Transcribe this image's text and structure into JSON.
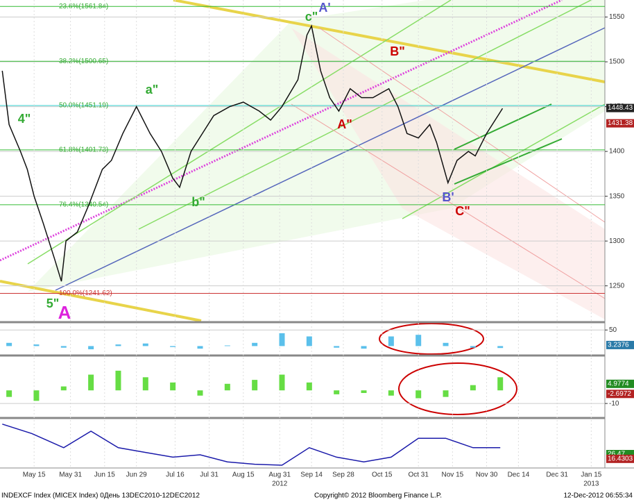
{
  "chart_data": [
    {
      "type": "line",
      "name": "INDEXCF Index",
      "x": [
        122,
        125,
        130,
        133,
        136,
        140,
        145,
        148,
        150,
        155,
        160,
        166,
        170,
        175,
        181,
        187,
        192,
        197,
        200,
        205,
        210,
        215,
        222,
        228,
        235,
        240,
        245,
        252,
        256,
        258,
        262,
        266,
        270,
        275,
        280,
        285,
        292,
        296,
        300,
        305,
        310,
        313,
        318,
        322,
        327,
        330,
        335,
        340,
        342
      ],
      "values": [
        1490,
        1430,
        1400,
        1380,
        1350,
        1320,
        1280,
        1255,
        1300,
        1310,
        1340,
        1380,
        1390,
        1420,
        1450,
        1420,
        1400,
        1370,
        1360,
        1400,
        1420,
        1440,
        1450,
        1455,
        1445,
        1435,
        1450,
        1480,
        1530,
        1540,
        1490,
        1460,
        1445,
        1470,
        1460,
        1460,
        1470,
        1450,
        1420,
        1415,
        1430,
        1410,
        1365,
        1390,
        1400,
        1395,
        1420,
        1440,
        1448
      ],
      "color": "#111111",
      "xlim": [
        121,
        387
      ],
      "ylim": [
        1211,
        1569
      ],
      "xticks": [
        {
          "value": 136,
          "label": "May 15"
        },
        {
          "value": 152,
          "label": "May 31"
        },
        {
          "value": 167,
          "label": "Jun 15"
        },
        {
          "value": 181,
          "label": "Jun 29"
        },
        {
          "value": 198,
          "label": "Jul 16"
        },
        {
          "value": 213,
          "label": "Jul 31"
        },
        {
          "value": 228,
          "label": "Aug 15"
        },
        {
          "value": 244,
          "label": "Aug 31"
        },
        {
          "value": 258,
          "label": "Sep 14"
        },
        {
          "value": 272,
          "label": "Sep 28"
        },
        {
          "value": 289,
          "label": "Oct 15"
        },
        {
          "value": 305,
          "label": "Oct 31"
        },
        {
          "value": 320,
          "label": "Nov 15"
        },
        {
          "value": 335,
          "label": "Nov 30"
        },
        {
          "value": 349,
          "label": "Dec 14"
        },
        {
          "value": 366,
          "label": "Dec 31"
        },
        {
          "value": 381,
          "label": "Jan 15"
        }
      ],
      "year_labels": [
        {
          "value": 244,
          "label": "2012"
        },
        {
          "value": 381,
          "label": "2013"
        }
      ],
      "yticks": [
        1250,
        1300,
        1350,
        1400,
        1450,
        1500,
        1550
      ],
      "levels": [
        {
          "value": 1561.84,
          "label": "23.6%(1561.84)"
        },
        {
          "value": 1500.65,
          "label": "38.2%(1500.65)"
        },
        {
          "value": 1451.19,
          "label": "50.0%(1451.19)"
        },
        {
          "value": 1401.73,
          "label": "61.8%(1401.73)"
        },
        {
          "value": 1340.54,
          "label": "76.4%(1340.54)"
        },
        {
          "value": 1241.62,
          "label": "100.0%(1241.62)"
        }
      ],
      "value_boxes": [
        {
          "value": 1448.43,
          "label": "1448.43",
          "color": "#222222"
        },
        {
          "value": 1431.38,
          "label": "1431.38",
          "color": "#b22222"
        }
      ],
      "annotations": [
        {
          "label": "A'",
          "color": "#5555cc"
        },
        {
          "label": "B\"",
          "color": "#cc0000"
        },
        {
          "label": "A\"",
          "color": "#cc0000"
        },
        {
          "label": "B'",
          "color": "#5555cc"
        },
        {
          "label": "C\"",
          "color": "#cc0000"
        },
        {
          "label": "4\"",
          "color": "#33aa33"
        },
        {
          "label": "5\"",
          "color": "#33aa33"
        },
        {
          "label": "A",
          "color": "#dd22dd"
        },
        {
          "label": "a\"",
          "color": "#33aa33"
        },
        {
          "label": "b\"",
          "color": "#33aa33"
        },
        {
          "label": "c\"",
          "color": "#33aa33"
        }
      ],
      "footer": {
        "left": "INDEXCF Index (MICEX Index) 0День 13DEC2010-12DEC2012",
        "center": "Copyright© 2012 Bloomberg Finance L.P.",
        "right": "12-Dec-2012 06:55:34"
      }
    },
    {
      "type": "bar",
      "color": "#5bc0eb",
      "x": [
        125,
        137,
        149,
        161,
        173,
        185,
        197,
        209,
        221,
        233,
        245,
        257,
        269,
        281,
        293,
        305,
        317,
        329,
        341
      ],
      "values": [
        10,
        5,
        -5,
        -10,
        5,
        8,
        -3,
        -8,
        2,
        10,
        40,
        30,
        -5,
        -8,
        30,
        35,
        10,
        -5,
        -6
      ],
      "ylim": [
        -25,
        70
      ],
      "yticks": [
        50
      ],
      "value_boxes": [
        {
          "value": 3.2376,
          "label": "3.2376",
          "color": "#2a7aa8"
        }
      ]
    },
    {
      "type": "bar",
      "color": "#66dd44",
      "x": [
        125,
        137,
        149,
        161,
        173,
        185,
        197,
        209,
        221,
        233,
        245,
        257,
        269,
        281,
        293,
        305,
        317,
        329,
        341
      ],
      "values": [
        -5,
        -8,
        3,
        12,
        15,
        10,
        6,
        -4,
        5,
        8,
        12,
        6,
        -3,
        -2,
        -4,
        -6,
        -5,
        4,
        10
      ],
      "ylim": [
        -20,
        25
      ],
      "yticks": [
        -10
      ],
      "value_boxes": [
        {
          "value": 4.9774,
          "label": "4.9774",
          "color": "#228b22"
        },
        {
          "value": -2.6972,
          "label": "-2.6972",
          "color": "#b22222"
        }
      ]
    },
    {
      "type": "line",
      "color": "#1a1aaa",
      "x": [
        122,
        135,
        149,
        161,
        173,
        185,
        197,
        209,
        221,
        233,
        245,
        257,
        269,
        281,
        293,
        305,
        317,
        329,
        341
      ],
      "values": [
        90,
        70,
        40,
        75,
        40,
        30,
        20,
        25,
        10,
        5,
        3,
        40,
        20,
        10,
        20,
        60,
        60,
        40,
        40
      ],
      "ylim": [
        0,
        100
      ],
      "yticks": [],
      "value_boxes": [
        {
          "value": 26.47,
          "label": "26.47",
          "color": "#228b22"
        },
        {
          "value": 16.4303,
          "label": "16.4303",
          "color": "#b22222"
        }
      ]
    }
  ]
}
